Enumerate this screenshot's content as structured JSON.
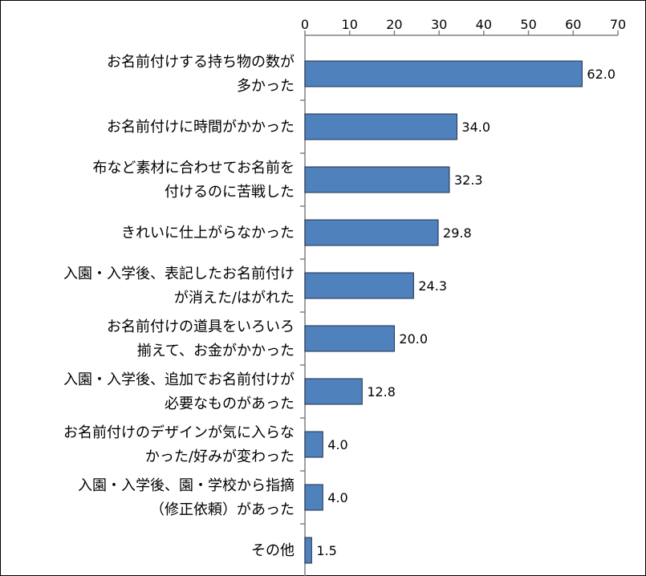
{
  "chart_data": {
    "type": "bar",
    "orientation": "horizontal",
    "title": "",
    "xlabel": "",
    "ylabel": "",
    "xlim": [
      0,
      70
    ],
    "ticks": [
      "0",
      "10",
      "20",
      "30",
      "40",
      "50",
      "60",
      "70"
    ],
    "grid": false,
    "bar_color": "#4f81bd",
    "categories": [
      [
        "お名前付けする持ち物の数が",
        "多かった"
      ],
      [
        "お名前付けに時間がかかった"
      ],
      [
        "布など素材に合わせてお名前を",
        "付けるのに苦戦した"
      ],
      [
        "きれいに仕上がらなかった"
      ],
      [
        "入園・入学後、表記したお名前付け",
        "が消えた/はがれた"
      ],
      [
        "お名前付けの道具をいろいろ",
        "揃えて、お金がかかった"
      ],
      [
        "入園・入学後、追加でお名前付けが",
        "必要なものがあった"
      ],
      [
        "お名前付けのデザインが気に入らな",
        "かった/好みが変わった"
      ],
      [
        "入園・入学後、園・学校から指摘",
        "（修正依頼）があった"
      ],
      [
        "その他"
      ]
    ],
    "values": [
      62.0,
      34.0,
      32.3,
      29.8,
      24.3,
      20.0,
      12.8,
      4.0,
      4.0,
      1.5
    ],
    "value_labels": [
      "62.0",
      "34.0",
      "32.3",
      "29.8",
      "24.3",
      "20.0",
      "12.8",
      "4.0",
      "4.0",
      "1.5"
    ]
  }
}
